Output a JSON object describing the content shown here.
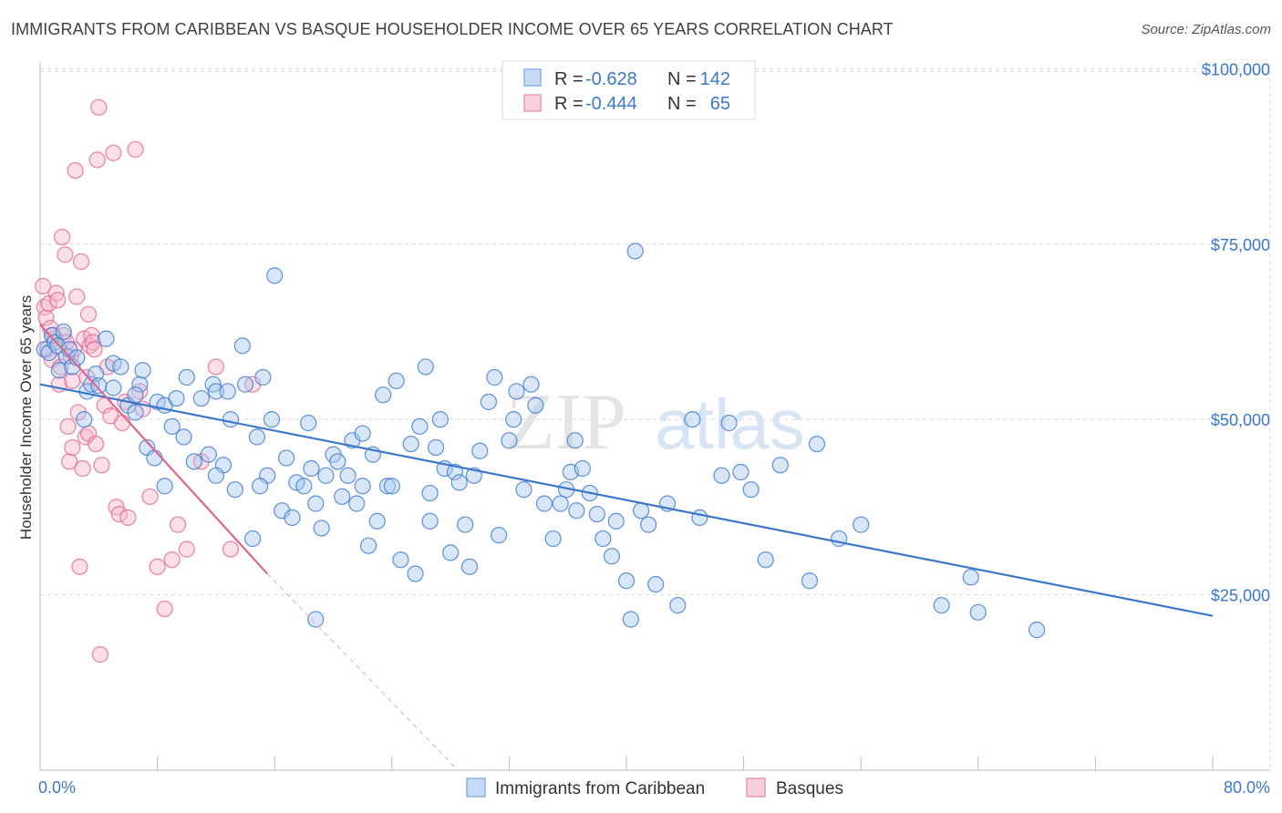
{
  "title": "IMMIGRANTS FROM CARIBBEAN VS BASQUE HOUSEHOLDER INCOME OVER 65 YEARS CORRELATION CHART",
  "source": "Source: ZipAtlas.com",
  "watermark": {
    "zip": "ZIP",
    "atlas": "atlas"
  },
  "colors": {
    "blue": "#3b78c9",
    "blue_fill": "#a8c8ef",
    "pink": "#e06690",
    "pink_fill": "#f5b6cb",
    "grid": "#d8d8d8"
  },
  "legend": {
    "r_label": "R =",
    "n_label": "N =",
    "items": [
      {
        "r": "-0.628",
        "n": "142",
        "color": "blue"
      },
      {
        "r": "-0.444",
        "n": "65",
        "color": "pink"
      }
    ]
  },
  "chart_data": {
    "type": "scatter",
    "xlabel": "",
    "ylabel": "Householder Income Over 65 years",
    "x_tick_labels": [
      "0.0%",
      "80.0%"
    ],
    "y_tick_labels": [
      "$100,000",
      "$75,000",
      "$50,000",
      "$25,000"
    ],
    "y_ticks": [
      100000,
      75000,
      50000,
      25000
    ],
    "xlim": [
      0,
      80
    ],
    "ylim": [
      0,
      102000
    ],
    "grid": true,
    "series": [
      {
        "name": "Immigrants from Caribbean",
        "color": "blue",
        "trend": {
          "x": [
            0,
            80
          ],
          "y": [
            55000,
            22000
          ]
        },
        "points": [
          [
            0.3,
            60000
          ],
          [
            0.6,
            59500
          ],
          [
            0.8,
            62000
          ],
          [
            1.0,
            61000
          ],
          [
            1.2,
            60500
          ],
          [
            1.3,
            57000
          ],
          [
            1.6,
            62500
          ],
          [
            1.8,
            59000
          ],
          [
            2.0,
            60000
          ],
          [
            2.2,
            57500
          ],
          [
            2.5,
            58800
          ],
          [
            3.0,
            50000
          ],
          [
            3.2,
            54000
          ],
          [
            3.5,
            55000
          ],
          [
            3.8,
            56500
          ],
          [
            4.0,
            54800
          ],
          [
            4.5,
            61500
          ],
          [
            5.0,
            58000
          ],
          [
            5.5,
            57500
          ],
          [
            6.0,
            52000
          ],
          [
            6.5,
            51000
          ],
          [
            6.8,
            55000
          ],
          [
            7.0,
            57000
          ],
          [
            7.3,
            46000
          ],
          [
            7.8,
            44500
          ],
          [
            8.0,
            52500
          ],
          [
            8.5,
            52000
          ],
          [
            9.0,
            49000
          ],
          [
            9.3,
            53000
          ],
          [
            9.8,
            47500
          ],
          [
            10.0,
            56000
          ],
          [
            10.5,
            44000
          ],
          [
            11.0,
            53000
          ],
          [
            11.5,
            45000
          ],
          [
            11.8,
            55000
          ],
          [
            12.0,
            54000
          ],
          [
            12.5,
            43500
          ],
          [
            12.8,
            54000
          ],
          [
            13.0,
            50000
          ],
          [
            13.3,
            40000
          ],
          [
            13.8,
            60500
          ],
          [
            14.0,
            55000
          ],
          [
            14.5,
            33000
          ],
          [
            14.8,
            47500
          ],
          [
            15.2,
            56000
          ],
          [
            15.5,
            42000
          ],
          [
            15.8,
            50000
          ],
          [
            16.0,
            70500
          ],
          [
            16.5,
            37000
          ],
          [
            16.8,
            44500
          ],
          [
            17.2,
            36000
          ],
          [
            17.5,
            41000
          ],
          [
            18.0,
            40500
          ],
          [
            18.3,
            49500
          ],
          [
            18.5,
            43000
          ],
          [
            18.8,
            38000
          ],
          [
            19.2,
            34500
          ],
          [
            19.5,
            42000
          ],
          [
            20.0,
            45000
          ],
          [
            20.3,
            44000
          ],
          [
            20.6,
            39000
          ],
          [
            21.0,
            42000
          ],
          [
            21.3,
            47000
          ],
          [
            21.6,
            38000
          ],
          [
            22.0,
            48000
          ],
          [
            22.4,
            32000
          ],
          [
            22.7,
            45000
          ],
          [
            23.0,
            35500
          ],
          [
            23.4,
            53500
          ],
          [
            23.7,
            40500
          ],
          [
            24.0,
            40500
          ],
          [
            24.3,
            55500
          ],
          [
            24.6,
            30000
          ],
          [
            25.3,
            46500
          ],
          [
            25.6,
            28000
          ],
          [
            25.9,
            49000
          ],
          [
            26.3,
            57500
          ],
          [
            26.6,
            39500
          ],
          [
            27.0,
            46000
          ],
          [
            27.3,
            50000
          ],
          [
            27.6,
            43000
          ],
          [
            28.0,
            31000
          ],
          [
            28.3,
            42500
          ],
          [
            28.6,
            41000
          ],
          [
            29.0,
            35000
          ],
          [
            29.3,
            29000
          ],
          [
            29.6,
            42000
          ],
          [
            30.0,
            45500
          ],
          [
            30.6,
            52500
          ],
          [
            31.0,
            56000
          ],
          [
            31.3,
            33500
          ],
          [
            32.0,
            47000
          ],
          [
            32.3,
            50000
          ],
          [
            33.0,
            40000
          ],
          [
            33.5,
            55000
          ],
          [
            33.8,
            52000
          ],
          [
            34.4,
            38000
          ],
          [
            35.0,
            33000
          ],
          [
            35.5,
            38000
          ],
          [
            35.9,
            40000
          ],
          [
            36.2,
            42500
          ],
          [
            36.6,
            37000
          ],
          [
            37.0,
            43000
          ],
          [
            37.5,
            39500
          ],
          [
            38.0,
            36500
          ],
          [
            38.4,
            33000
          ],
          [
            39.0,
            30500
          ],
          [
            39.3,
            35500
          ],
          [
            40.0,
            27000
          ],
          [
            40.3,
            21500
          ],
          [
            40.6,
            74000
          ],
          [
            41.0,
            37000
          ],
          [
            41.5,
            35000
          ],
          [
            42.0,
            26500
          ],
          [
            42.8,
            38000
          ],
          [
            43.5,
            23500
          ],
          [
            44.5,
            50000
          ],
          [
            45.0,
            36000
          ],
          [
            46.5,
            42000
          ],
          [
            47.0,
            49500
          ],
          [
            47.8,
            42500
          ],
          [
            48.5,
            40000
          ],
          [
            49.5,
            30000
          ],
          [
            50.5,
            43500
          ],
          [
            52.5,
            27000
          ],
          [
            53.0,
            46500
          ],
          [
            54.5,
            33000
          ],
          [
            56.0,
            35000
          ],
          [
            61.5,
            23500
          ],
          [
            63.5,
            27500
          ],
          [
            64.0,
            22500
          ],
          [
            68.0,
            20000
          ],
          [
            18.8,
            21500
          ],
          [
            15.0,
            40500
          ],
          [
            26.6,
            35500
          ],
          [
            36.5,
            47000
          ],
          [
            8.5,
            40500
          ],
          [
            12.0,
            42000
          ],
          [
            22.0,
            40500
          ],
          [
            32.5,
            54000
          ],
          [
            5.0,
            54500
          ],
          [
            6.5,
            53500
          ]
        ]
      },
      {
        "name": "Basques",
        "color": "pink",
        "trend": {
          "x": [
            0,
            15.5
          ],
          "y": [
            63500,
            28000
          ]
        },
        "trend_dashed": {
          "x": [
            15.5,
            28.5
          ],
          "y": [
            28000,
            0
          ]
        },
        "points": [
          [
            0.2,
            69000
          ],
          [
            0.3,
            66000
          ],
          [
            0.4,
            64500
          ],
          [
            0.5,
            60000
          ],
          [
            0.6,
            66500
          ],
          [
            0.7,
            63000
          ],
          [
            0.8,
            58500
          ],
          [
            1.0,
            61500
          ],
          [
            1.1,
            68000
          ],
          [
            1.2,
            67000
          ],
          [
            1.3,
            55000
          ],
          [
            1.4,
            57500
          ],
          [
            1.5,
            76000
          ],
          [
            1.6,
            62000
          ],
          [
            1.7,
            73500
          ],
          [
            1.8,
            61000
          ],
          [
            1.9,
            49000
          ],
          [
            2.0,
            44000
          ],
          [
            2.1,
            59000
          ],
          [
            2.2,
            55500
          ],
          [
            2.3,
            60000
          ],
          [
            2.4,
            85500
          ],
          [
            2.5,
            67500
          ],
          [
            2.6,
            51000
          ],
          [
            2.7,
            29000
          ],
          [
            2.8,
            72500
          ],
          [
            2.9,
            43000
          ],
          [
            3.0,
            61500
          ],
          [
            3.1,
            47500
          ],
          [
            3.2,
            56000
          ],
          [
            3.3,
            48000
          ],
          [
            3.4,
            60500
          ],
          [
            3.5,
            62000
          ],
          [
            3.6,
            61000
          ],
          [
            3.7,
            60000
          ],
          [
            3.8,
            46500
          ],
          [
            3.9,
            87000
          ],
          [
            4.0,
            94500
          ],
          [
            4.1,
            16500
          ],
          [
            4.2,
            43500
          ],
          [
            4.4,
            52000
          ],
          [
            4.6,
            57500
          ],
          [
            4.8,
            50500
          ],
          [
            5.0,
            88000
          ],
          [
            5.2,
            37500
          ],
          [
            5.4,
            36500
          ],
          [
            5.6,
            49500
          ],
          [
            5.8,
            52500
          ],
          [
            6.0,
            36000
          ],
          [
            6.5,
            88500
          ],
          [
            6.8,
            54000
          ],
          [
            7.0,
            51500
          ],
          [
            7.5,
            39000
          ],
          [
            8.0,
            29000
          ],
          [
            8.5,
            23000
          ],
          [
            9.0,
            30000
          ],
          [
            9.4,
            35000
          ],
          [
            10.0,
            31500
          ],
          [
            11.0,
            44000
          ],
          [
            12.0,
            57500
          ],
          [
            13.0,
            31500
          ],
          [
            14.5,
            55000
          ],
          [
            2.2,
            46000
          ],
          [
            0.9,
            62000
          ],
          [
            3.3,
            65000
          ]
        ]
      }
    ]
  },
  "bottom_legend": [
    {
      "label": "Immigrants from Caribbean",
      "color": "blue"
    },
    {
      "label": "Basques",
      "color": "pink"
    }
  ]
}
